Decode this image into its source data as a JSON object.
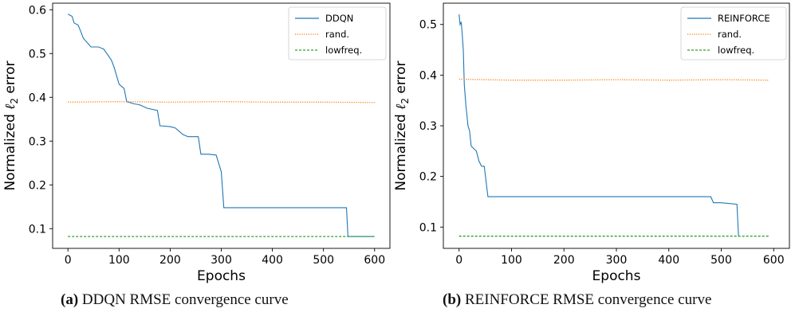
{
  "chart_data": [
    {
      "type": "line",
      "caption_tag": "(a)",
      "caption_text": "DDQN RMSE convergence curve",
      "xlabel": "Epochs",
      "ylabel_prefix": "Normalized ",
      "ylabel_symbol": "ℓ",
      "ylabel_subscript": "2",
      "ylabel_suffix": " error",
      "xlim": [
        -30,
        630
      ],
      "ylim": [
        0.055,
        0.615
      ],
      "xticks": [
        0,
        100,
        200,
        300,
        400,
        500,
        600
      ],
      "xtick_labels": [
        "0",
        "100",
        "200",
        "300",
        "400",
        "500",
        "600"
      ],
      "yticks": [
        0.1,
        0.2,
        0.3,
        0.4,
        0.5,
        0.6
      ],
      "ytick_labels": [
        "0.1",
        "0.2",
        "0.3",
        "0.4",
        "0.5",
        "0.6"
      ],
      "grid": false,
      "legend_position": "top-right",
      "series": [
        {
          "name": "DDQN",
          "color": "#1f77b4",
          "style": "solid",
          "x": [
            0,
            8,
            12,
            20,
            25,
            30,
            45,
            60,
            70,
            85,
            90,
            100,
            110,
            115,
            130,
            140,
            155,
            175,
            180,
            200,
            210,
            225,
            235,
            255,
            260,
            275,
            290,
            300,
            305,
            400,
            545,
            548,
            600
          ],
          "y": [
            0.59,
            0.585,
            0.57,
            0.565,
            0.55,
            0.535,
            0.515,
            0.515,
            0.51,
            0.485,
            0.47,
            0.43,
            0.42,
            0.39,
            0.385,
            0.383,
            0.375,
            0.37,
            0.335,
            0.333,
            0.33,
            0.315,
            0.31,
            0.31,
            0.27,
            0.27,
            0.268,
            0.23,
            0.148,
            0.148,
            0.148,
            0.082,
            0.082
          ]
        },
        {
          "name": "rand.",
          "color": "#ff7f0e",
          "style": "dotted",
          "x": [
            0,
            100,
            200,
            300,
            400,
            500,
            600
          ],
          "y": [
            0.389,
            0.39,
            0.389,
            0.39,
            0.389,
            0.389,
            0.388
          ]
        },
        {
          "name": "lowfreq.",
          "color": "#2ca02c",
          "style": "dashed",
          "x": [
            0,
            600
          ],
          "y": [
            0.082,
            0.082
          ]
        }
      ]
    },
    {
      "type": "line",
      "caption_tag": "(b)",
      "caption_text": "REINFORCE RMSE convergence curve",
      "xlabel": "Epochs",
      "ylabel_prefix": "Normalized ",
      "ylabel_symbol": "ℓ",
      "ylabel_subscript": "2",
      "ylabel_suffix": " error",
      "xlim": [
        -30,
        630
      ],
      "ylim": [
        0.058,
        0.542
      ],
      "xticks": [
        0,
        100,
        200,
        300,
        400,
        500,
        600
      ],
      "xtick_labels": [
        "0",
        "100",
        "200",
        "300",
        "400",
        "500",
        "600"
      ],
      "yticks": [
        0.1,
        0.2,
        0.3,
        0.4,
        0.5
      ],
      "ytick_labels": [
        "0.1",
        "0.2",
        "0.3",
        "0.4",
        "0.5"
      ],
      "grid": false,
      "legend_position": "top-right",
      "series": [
        {
          "name": "REINFORCE",
          "color": "#1f77b4",
          "style": "solid",
          "x": [
            0,
            2,
            4,
            6,
            8,
            10,
            13,
            17,
            20,
            23,
            28,
            33,
            38,
            43,
            48,
            55,
            60,
            480,
            485,
            500,
            530,
            533
          ],
          "y": [
            0.52,
            0.5,
            0.505,
            0.48,
            0.45,
            0.38,
            0.34,
            0.3,
            0.29,
            0.26,
            0.255,
            0.25,
            0.23,
            0.22,
            0.22,
            0.16,
            0.16,
            0.16,
            0.148,
            0.148,
            0.145,
            0.082
          ]
        },
        {
          "name": "rand.",
          "color": "#ff7f0e",
          "style": "dotted",
          "x": [
            0,
            100,
            200,
            300,
            400,
            500,
            590
          ],
          "y": [
            0.392,
            0.39,
            0.39,
            0.391,
            0.39,
            0.391,
            0.39
          ]
        },
        {
          "name": "lowfreq.",
          "color": "#2ca02c",
          "style": "dashed",
          "x": [
            0,
            590
          ],
          "y": [
            0.082,
            0.082
          ]
        }
      ]
    }
  ]
}
